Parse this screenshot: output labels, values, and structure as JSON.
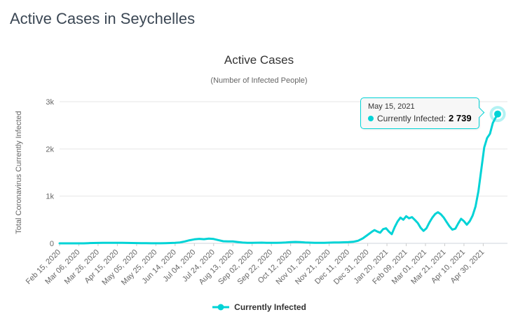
{
  "page": {
    "title": "Active Cases in Seychelles"
  },
  "chart": {
    "title": "Active Cases",
    "subtitle": "(Number of Infected People)",
    "colors": {
      "accent": "#00d3d6",
      "grid": "#e6e6e6",
      "axis_line": "#cfd4dd",
      "tick": "#cccccc",
      "label": "#666666"
    },
    "legend": {
      "label": "Currently Infected"
    },
    "tooltip": {
      "date": "May 15, 2021",
      "series_label": "Currently Infected:",
      "value": "2 739"
    }
  },
  "chart_data": {
    "type": "line",
    "title": "Active Cases",
    "subtitle": "(Number of Infected People)",
    "ylabel": "Total Coronavirus Currently Infected",
    "xlabel": "",
    "grid": "horizontal",
    "legend_position": "bottom",
    "ylim": [
      0,
      3000
    ],
    "y_ticks": [
      "0",
      "1k",
      "2k",
      "3k"
    ],
    "y_tick_values": [
      0,
      1000,
      2000,
      3000
    ],
    "x_tick_interval_days": 20,
    "x_range_days": 455,
    "x_ticks": [
      "Feb 15, 2020",
      "Mar 06, 2020",
      "Mar 26, 2020",
      "Apr 15, 2020",
      "May 05, 2020",
      "May 25, 2020",
      "Jun 14, 2020",
      "Jul 04, 2020",
      "Jul 24, 2020",
      "Aug 13, 2020",
      "Sep 02, 2020",
      "Sep 22, 2020",
      "Oct 12, 2020",
      "Nov 01, 2020",
      "Nov 21, 2020",
      "Dec 11, 2020",
      "Dec 31, 2020",
      "Jan 20, 2021",
      "Feb 09, 2021",
      "Mar 01, 2021",
      "Mar 21, 2021",
      "Apr 10, 2021",
      "Apr 30, 2021"
    ],
    "last_point": {
      "date": "May 15, 2021",
      "value": 2739
    },
    "series": [
      {
        "name": "Currently Infected",
        "color": "#00d3d6",
        "x": [
          "Feb 15, 2020",
          "Feb 20, 2020",
          "Feb 25, 2020",
          "Mar 01, 2020",
          "Mar 06, 2020",
          "Mar 11, 2020",
          "Mar 16, 2020",
          "Mar 21, 2020",
          "Mar 26, 2020",
          "Mar 31, 2020",
          "Apr 05, 2020",
          "Apr 10, 2020",
          "Apr 15, 2020",
          "Apr 20, 2020",
          "Apr 25, 2020",
          "Apr 30, 2020",
          "May 05, 2020",
          "May 10, 2020",
          "May 15, 2020",
          "May 20, 2020",
          "May 25, 2020",
          "May 30, 2020",
          "Jun 04, 2020",
          "Jun 09, 2020",
          "Jun 14, 2020",
          "Jun 19, 2020",
          "Jun 24, 2020",
          "Jun 29, 2020",
          "Jul 04, 2020",
          "Jul 09, 2020",
          "Jul 14, 2020",
          "Jul 19, 2020",
          "Jul 24, 2020",
          "Jul 29, 2020",
          "Aug 03, 2020",
          "Aug 08, 2020",
          "Aug 13, 2020",
          "Aug 18, 2020",
          "Aug 23, 2020",
          "Aug 28, 2020",
          "Sep 02, 2020",
          "Sep 07, 2020",
          "Sep 12, 2020",
          "Sep 17, 2020",
          "Sep 22, 2020",
          "Sep 27, 2020",
          "Oct 02, 2020",
          "Oct 07, 2020",
          "Oct 12, 2020",
          "Oct 17, 2020",
          "Oct 22, 2020",
          "Oct 27, 2020",
          "Nov 01, 2020",
          "Nov 06, 2020",
          "Nov 11, 2020",
          "Nov 16, 2020",
          "Nov 21, 2020",
          "Nov 26, 2020",
          "Dec 01, 2020",
          "Dec 06, 2020",
          "Dec 11, 2020",
          "Dec 16, 2020",
          "Dec 21, 2020",
          "Dec 26, 2020",
          "Dec 31, 2020",
          "Jan 04, 2021",
          "Jan 07, 2021",
          "Jan 10, 2021",
          "Jan 13, 2021",
          "Jan 16, 2021",
          "Jan 19, 2021",
          "Jan 22, 2021",
          "Jan 25, 2021",
          "Jan 28, 2021",
          "Jan 31, 2021",
          "Feb 03, 2021",
          "Feb 06, 2021",
          "Feb 09, 2021",
          "Feb 12, 2021",
          "Feb 15, 2021",
          "Feb 18, 2021",
          "Feb 21, 2021",
          "Feb 24, 2021",
          "Feb 27, 2021",
          "Mar 02, 2021",
          "Mar 05, 2021",
          "Mar 08, 2021",
          "Mar 11, 2021",
          "Mar 14, 2021",
          "Mar 17, 2021",
          "Mar 20, 2021",
          "Mar 23, 2021",
          "Mar 26, 2021",
          "Mar 29, 2021",
          "Apr 01, 2021",
          "Apr 04, 2021",
          "Apr 07, 2021",
          "Apr 10, 2021",
          "Apr 13, 2021",
          "Apr 16, 2021",
          "Apr 19, 2021",
          "Apr 22, 2021",
          "Apr 25, 2021",
          "Apr 28, 2021",
          "May 01, 2021",
          "May 04, 2021",
          "May 07, 2021",
          "May 10, 2021",
          "May 12, 2021",
          "May 14, 2021",
          "May 15, 2021"
        ],
        "values": [
          0,
          0,
          0,
          0,
          0,
          0,
          5,
          8,
          9,
          10,
          11,
          11,
          11,
          10,
          9,
          8,
          6,
          4,
          3,
          2,
          1,
          2,
          4,
          8,
          11,
          20,
          40,
          65,
          85,
          95,
          88,
          100,
          92,
          68,
          45,
          42,
          40,
          28,
          16,
          12,
          10,
          13,
          15,
          12,
          10,
          11,
          13,
          18,
          25,
          30,
          27,
          20,
          15,
          12,
          10,
          12,
          15,
          18,
          20,
          22,
          25,
          32,
          55,
          105,
          180,
          240,
          280,
          250,
          225,
          300,
          320,
          250,
          195,
          340,
          460,
          545,
          500,
          575,
          530,
          555,
          495,
          430,
          330,
          265,
          320,
          440,
          540,
          620,
          660,
          615,
          545,
          450,
          360,
          290,
          310,
          420,
          520,
          470,
          395,
          470,
          590,
          780,
          1100,
          1560,
          2030,
          2230,
          2320,
          2550,
          2630,
          2700,
          2739
        ]
      }
    ]
  }
}
